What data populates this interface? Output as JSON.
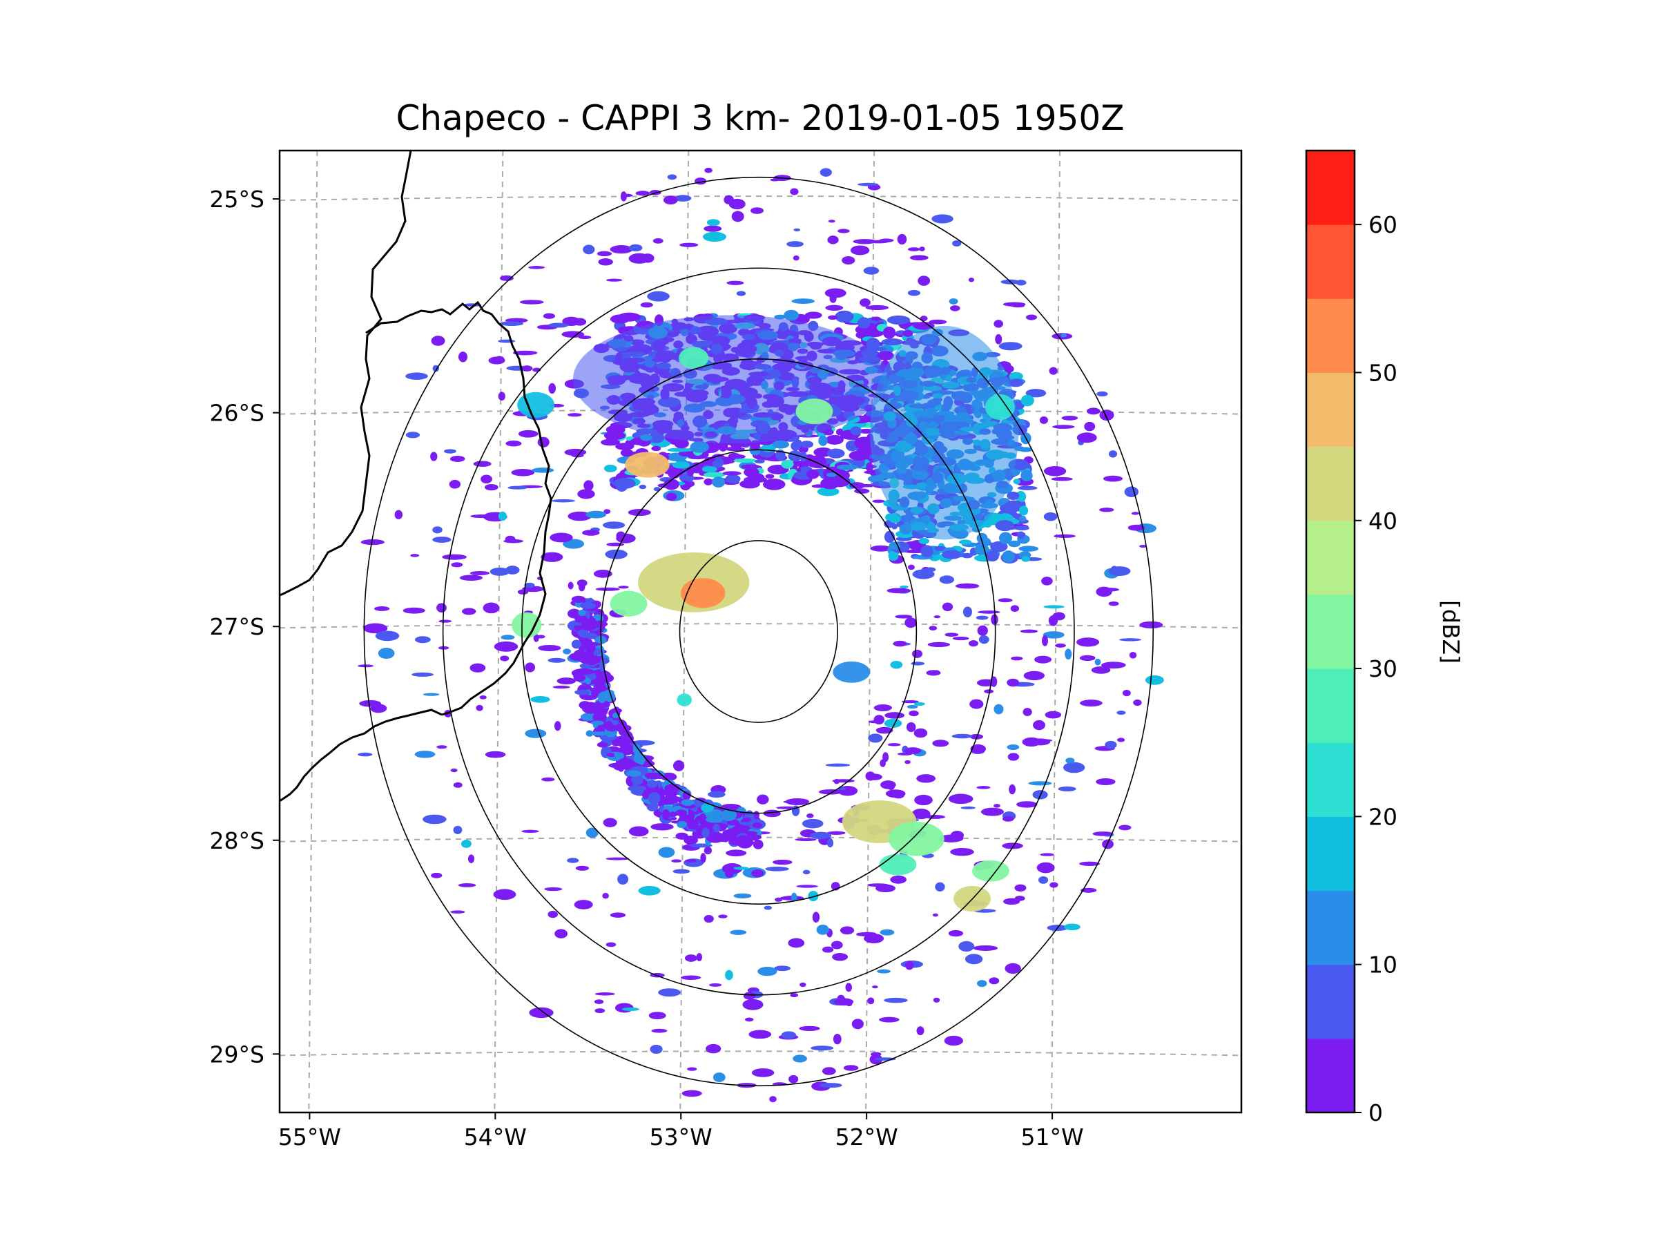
{
  "chart_data": {
    "type": "heatmap",
    "title": "Chapeco - CAPPI 3 km- 2019-01-05 1950Z",
    "product": "CAPPI 3 km",
    "radar_site": "Chapeco",
    "datetime": "2019-01-05 1950Z",
    "radar_center": {
      "lon": -52.6,
      "lat": -27.03
    },
    "map_extent": {
      "lon": [
        -55.18,
        -50.0
      ],
      "lat": [
        -29.28,
        -24.78
      ]
    },
    "x_ticks": [
      {
        "value": -55,
        "label": "55°W"
      },
      {
        "value": -54,
        "label": "54°W"
      },
      {
        "value": -53,
        "label": "53°W"
      },
      {
        "value": -52,
        "label": "52°W"
      },
      {
        "value": -51,
        "label": "51°W"
      }
    ],
    "y_ticks": [
      {
        "value": -25,
        "label": "25°S"
      },
      {
        "value": -26,
        "label": "26°S"
      },
      {
        "value": -27,
        "label": "27°S"
      },
      {
        "value": -28,
        "label": "28°S"
      },
      {
        "value": -29,
        "label": "29°S"
      }
    ],
    "gridlines": true,
    "range_rings_deg": [
      0.5,
      1.0,
      1.5,
      2.0,
      2.5
    ],
    "colorbar": {
      "label": "[dBZ]",
      "vmin": 0,
      "vmax": 65,
      "ticks": [
        0,
        10,
        20,
        30,
        40,
        50,
        60
      ],
      "tick_labels": [
        "0",
        "10",
        "20",
        "30",
        "40",
        "50",
        "60"
      ],
      "colors": [
        "#7a1cf2",
        "#4a5af0",
        "#2a8ee8",
        "#13bfe0",
        "#2ee0d3",
        "#4eeeb8",
        "#82f6a0",
        "#b5ef8a",
        "#d3d77e",
        "#f2bc6c",
        "#ff8c4c",
        "#ff5534",
        "#ff1f16"
      ]
    },
    "echo_cells": [
      {
        "lon": -52.75,
        "lat": -25.85,
        "rx": 0.85,
        "ry": 0.3,
        "dbz": 8
      },
      {
        "lon": -51.6,
        "lat": -26.1,
        "rx": 0.4,
        "ry": 0.5,
        "dbz": 12
      },
      {
        "lon": -53.2,
        "lat": -26.25,
        "rx": 0.12,
        "ry": 0.06,
        "dbz": 45
      },
      {
        "lon": -52.95,
        "lat": -26.8,
        "rx": 0.3,
        "ry": 0.14,
        "dbz": 44
      },
      {
        "lon": -52.9,
        "lat": -26.85,
        "rx": 0.12,
        "ry": 0.07,
        "dbz": 52
      },
      {
        "lon": -53.3,
        "lat": -26.9,
        "rx": 0.1,
        "ry": 0.06,
        "dbz": 30
      },
      {
        "lon": -52.1,
        "lat": -27.22,
        "rx": 0.1,
        "ry": 0.05,
        "dbz": 12
      },
      {
        "lon": -53.0,
        "lat": -27.35,
        "rx": 0.04,
        "ry": 0.03,
        "dbz": 22
      },
      {
        "lon": -51.95,
        "lat": -27.92,
        "rx": 0.2,
        "ry": 0.1,
        "dbz": 42
      },
      {
        "lon": -51.75,
        "lat": -28.0,
        "rx": 0.15,
        "ry": 0.08,
        "dbz": 34
      },
      {
        "lon": -51.85,
        "lat": -28.12,
        "rx": 0.1,
        "ry": 0.05,
        "dbz": 26
      },
      {
        "lon": -51.45,
        "lat": -28.28,
        "rx": 0.1,
        "ry": 0.06,
        "dbz": 40
      },
      {
        "lon": -51.35,
        "lat": -28.15,
        "rx": 0.1,
        "ry": 0.05,
        "dbz": 30
      },
      {
        "lon": -53.85,
        "lat": -27.0,
        "rx": 0.08,
        "ry": 0.06,
        "dbz": 30
      },
      {
        "lon": -51.3,
        "lat": -25.98,
        "rx": 0.08,
        "ry": 0.06,
        "dbz": 22
      },
      {
        "lon": -52.3,
        "lat": -26.0,
        "rx": 0.1,
        "ry": 0.06,
        "dbz": 30
      },
      {
        "lon": -52.95,
        "lat": -25.75,
        "rx": 0.08,
        "ry": 0.05,
        "dbz": 28
      },
      {
        "lon": -53.8,
        "lat": -25.97,
        "rx": 0.1,
        "ry": 0.06,
        "dbz": 18
      }
    ]
  }
}
